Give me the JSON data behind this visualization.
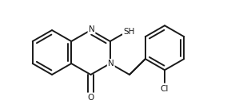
{
  "bg_color": "#ffffff",
  "line_color": "#1a1a1a",
  "line_width": 1.4,
  "font_size": 7.5,
  "figsize": [
    2.84,
    1.36
  ],
  "dpi": 100,
  "label_N1": "N",
  "label_N3": "N",
  "label_O": "O",
  "label_SH": "SH",
  "label_Cl": "Cl"
}
